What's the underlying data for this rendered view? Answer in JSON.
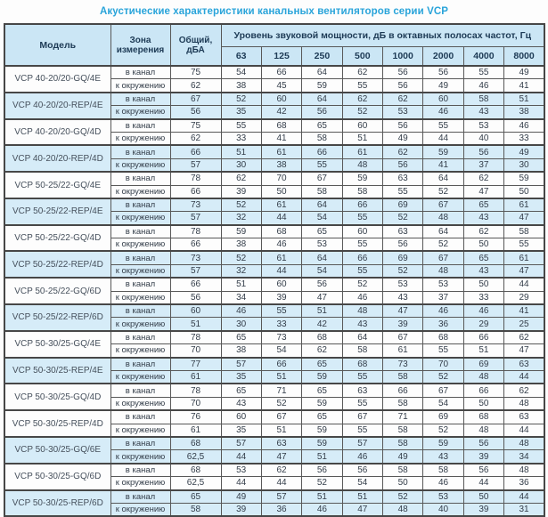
{
  "title": "Акустические характеристики канальных вентиляторов серии VCP",
  "colors": {
    "title_accent": "#29a4da",
    "header_bg": "#cbe6f5",
    "band_row_bg": "#d6ecf8",
    "border": "#474747",
    "text": "#333d49"
  },
  "table": {
    "headers": {
      "model": "Модель",
      "zone": "Зона измерения",
      "total": "Общий, дБА",
      "span": "Уровень звуковой мощности, дБ в октавных полосах частот, Гц",
      "frequencies": [
        "63",
        "125",
        "250",
        "500",
        "1000",
        "2000",
        "4000",
        "8000"
      ]
    },
    "models": [
      {
        "name": "VCP 40-20/20-GQ/4E",
        "band": false,
        "rows": [
          {
            "zone": "в канал",
            "total": "75",
            "levels": [
              "54",
              "66",
              "64",
              "62",
              "56",
              "56",
              "55",
              "49"
            ]
          },
          {
            "zone": "к окружению",
            "total": "62",
            "levels": [
              "38",
              "45",
              "59",
              "55",
              "56",
              "49",
              "46",
              "41"
            ]
          }
        ]
      },
      {
        "name": "VCP 40-20/20-REP/4E",
        "band": true,
        "rows": [
          {
            "zone": "в канал",
            "total": "67",
            "levels": [
              "52",
              "60",
              "64",
              "62",
              "62",
              "60",
              "58",
              "51"
            ]
          },
          {
            "zone": "к окружению",
            "total": "56",
            "levels": [
              "35",
              "42",
              "56",
              "52",
              "53",
              "46",
              "43",
              "38"
            ]
          }
        ]
      },
      {
        "name": "VCP 40-20/20-GQ/4D",
        "band": false,
        "rows": [
          {
            "zone": "в канал",
            "total": "75",
            "levels": [
              "55",
              "68",
              "65",
              "60",
              "56",
              "55",
              "53",
              "46"
            ]
          },
          {
            "zone": "к окружению",
            "total": "62",
            "levels": [
              "33",
              "41",
              "58",
              "51",
              "49",
              "44",
              "40",
              "33"
            ]
          }
        ]
      },
      {
        "name": "VCP 40-20/20-REP/4D",
        "band": true,
        "rows": [
          {
            "zone": "в канал",
            "total": "66",
            "levels": [
              "51",
              "61",
              "66",
              "61",
              "62",
              "59",
              "56",
              "49"
            ]
          },
          {
            "zone": "к окружению",
            "total": "57",
            "levels": [
              "30",
              "38",
              "55",
              "48",
              "56",
              "41",
              "37",
              "30"
            ]
          }
        ]
      },
      {
        "name": "VCP 50-25/22-GQ/4E",
        "band": false,
        "rows": [
          {
            "zone": "в канал",
            "total": "78",
            "levels": [
              "62",
              "70",
              "67",
              "59",
              "63",
              "64",
              "62",
              "59"
            ]
          },
          {
            "zone": "к окружению",
            "total": "66",
            "levels": [
              "39",
              "50",
              "58",
              "58",
              "55",
              "52",
              "47",
              "50"
            ]
          }
        ]
      },
      {
        "name": "VCP 50-25/22-REP/4E",
        "band": true,
        "rows": [
          {
            "zone": "в канал",
            "total": "73",
            "levels": [
              "52",
              "61",
              "64",
              "66",
              "69",
              "67",
              "65",
              "61"
            ]
          },
          {
            "zone": "к окружению",
            "total": "57",
            "levels": [
              "32",
              "44",
              "54",
              "55",
              "52",
              "48",
              "43",
              "47"
            ]
          }
        ]
      },
      {
        "name": "VCP 50-25/22-GQ/4D",
        "band": false,
        "rows": [
          {
            "zone": "в канал",
            "total": "78",
            "levels": [
              "59",
              "68",
              "65",
              "60",
              "63",
              "64",
              "62",
              "58"
            ]
          },
          {
            "zone": "к окружению",
            "total": "66",
            "levels": [
              "38",
              "46",
              "53",
              "55",
              "56",
              "52",
              "50",
              "55"
            ]
          }
        ]
      },
      {
        "name": "VCP 50-25/22-REP/4D",
        "band": true,
        "rows": [
          {
            "zone": "в канал",
            "total": "73",
            "levels": [
              "52",
              "61",
              "64",
              "66",
              "69",
              "67",
              "65",
              "61"
            ]
          },
          {
            "zone": "к окружению",
            "total": "57",
            "levels": [
              "32",
              "44",
              "54",
              "55",
              "52",
              "48",
              "43",
              "47"
            ]
          }
        ]
      },
      {
        "name": "VCP 50-25/22-GQ/6D",
        "band": false,
        "rows": [
          {
            "zone": "в канал",
            "total": "66",
            "levels": [
              "51",
              "60",
              "56",
              "52",
              "53",
              "53",
              "50",
              "44"
            ]
          },
          {
            "zone": "к окружению",
            "total": "56",
            "levels": [
              "34",
              "39",
              "47",
              "46",
              "43",
              "37",
              "33",
              "29"
            ]
          }
        ]
      },
      {
        "name": "VCP 50-25/22-REP/6D",
        "band": true,
        "rows": [
          {
            "zone": "в канал",
            "total": "60",
            "levels": [
              "46",
              "55",
              "51",
              "48",
              "47",
              "46",
              "46",
              "41"
            ]
          },
          {
            "zone": "к окружению",
            "total": "51",
            "levels": [
              "30",
              "33",
              "42",
              "43",
              "39",
              "36",
              "29",
              "25"
            ]
          }
        ]
      },
      {
        "name": "VCP 50-30/25-GQ/4E",
        "band": false,
        "rows": [
          {
            "zone": "в канал",
            "total": "78",
            "levels": [
              "65",
              "73",
              "68",
              "64",
              "67",
              "68",
              "66",
              "62"
            ]
          },
          {
            "zone": "к окружению",
            "total": "70",
            "levels": [
              "38",
              "54",
              "62",
              "58",
              "61",
              "55",
              "51",
              "47"
            ]
          }
        ]
      },
      {
        "name": "VCP 50-30/25-REP/4E",
        "band": true,
        "rows": [
          {
            "zone": "в канал",
            "total": "77",
            "levels": [
              "57",
              "66",
              "65",
              "68",
              "73",
              "70",
              "69",
              "63"
            ]
          },
          {
            "zone": "к окружению",
            "total": "61",
            "levels": [
              "35",
              "51",
              "59",
              "55",
              "58",
              "52",
              "48",
              "44"
            ]
          }
        ]
      },
      {
        "name": "VCP 50-30/25-GQ/4D",
        "band": false,
        "rows": [
          {
            "zone": "в канал",
            "total": "78",
            "levels": [
              "65",
              "71",
              "65",
              "63",
              "66",
              "67",
              "66",
              "62"
            ]
          },
          {
            "zone": "к окружению",
            "total": "70",
            "levels": [
              "43",
              "52",
              "59",
              "55",
              "58",
              "54",
              "50",
              "48"
            ]
          }
        ]
      },
      {
        "name": "VCP 50-30/25-REP/4D",
        "band": false,
        "rows": [
          {
            "zone": "в канал",
            "total": "76",
            "levels": [
              "60",
              "67",
              "65",
              "67",
              "71",
              "69",
              "68",
              "63"
            ]
          },
          {
            "zone": "к окружению",
            "total": "61",
            "levels": [
              "35",
              "51",
              "59",
              "55",
              "58",
              "52",
              "48",
              "44"
            ]
          }
        ]
      },
      {
        "name": "VCP 50-30/25-GQ/6E",
        "band": true,
        "rows": [
          {
            "zone": "в канал",
            "total": "68",
            "levels": [
              "57",
              "63",
              "59",
              "57",
              "58",
              "59",
              "56",
              "48"
            ]
          },
          {
            "zone": "к окружению",
            "total": "62,5",
            "levels": [
              "44",
              "47",
              "51",
              "46",
              "49",
              "43",
              "39",
              "34"
            ]
          }
        ]
      },
      {
        "name": "VCP 50-30/25-GQ/6D",
        "band": false,
        "rows": [
          {
            "zone": "в канал",
            "total": "68",
            "levels": [
              "53",
              "62",
              "56",
              "56",
              "58",
              "58",
              "56",
              "48"
            ]
          },
          {
            "zone": "к окружению",
            "total": "62,5",
            "levels": [
              "44",
              "44",
              "52",
              "54",
              "50",
              "46",
              "44",
              "36"
            ]
          }
        ]
      },
      {
        "name": "VCP 50-30/25-REP/6D",
        "band": true,
        "rows": [
          {
            "zone": "в канал",
            "total": "65",
            "levels": [
              "49",
              "57",
              "51",
              "51",
              "52",
              "53",
              "50",
              "44"
            ]
          },
          {
            "zone": "к окружению",
            "total": "58",
            "levels": [
              "39",
              "36",
              "46",
              "47",
              "48",
              "40",
              "39",
              "31"
            ]
          }
        ]
      }
    ]
  }
}
